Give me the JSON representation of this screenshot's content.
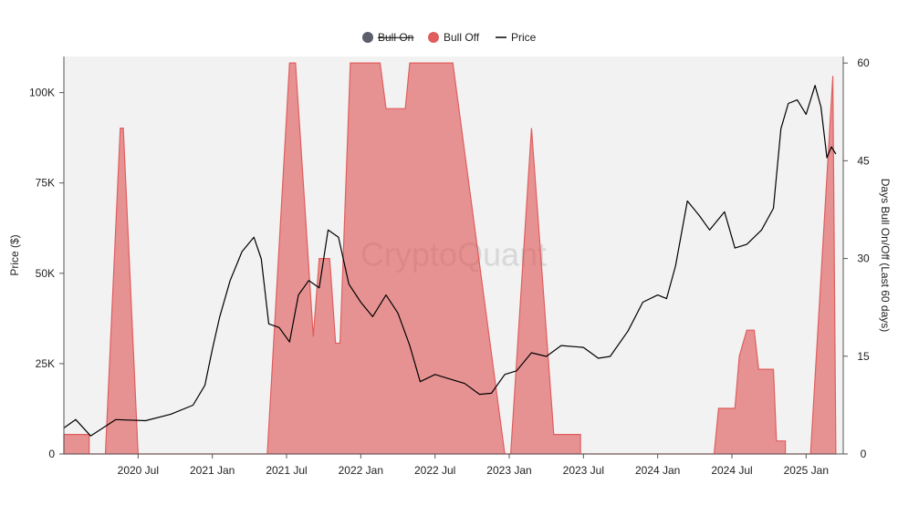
{
  "chart_data": {
    "type": "area",
    "title": "",
    "watermark": "CryptoQuant",
    "legend": {
      "placement": "top-center",
      "items": [
        {
          "label": "Bull On",
          "marker": "dot",
          "color": "#5b5f6b",
          "hidden": true
        },
        {
          "label": "Bull Off",
          "marker": "dot",
          "color": "#e05d5d",
          "hidden": false
        },
        {
          "label": "Price",
          "marker": "line",
          "color": "#000000",
          "hidden": false
        }
      ]
    },
    "x_axis": {
      "start": 2020.0,
      "end": 2025.25,
      "ticks": [
        {
          "label": "2020 Jul",
          "t": 2020.5
        },
        {
          "label": "2021 Jan",
          "t": 2021.0
        },
        {
          "label": "2021 Jul",
          "t": 2021.5
        },
        {
          "label": "2022 Jan",
          "t": 2022.0
        },
        {
          "label": "2022 Jul",
          "t": 2022.5
        },
        {
          "label": "2023 Jan",
          "t": 2023.0
        },
        {
          "label": "2023 Jul",
          "t": 2023.5
        },
        {
          "label": "2024 Jan",
          "t": 2024.0
        },
        {
          "label": "2024 Jul",
          "t": 2024.5
        },
        {
          "label": "2025 Jan",
          "t": 2025.0
        }
      ]
    },
    "y_left": {
      "label": "Price ($)",
      "min": 0,
      "max": 110000,
      "ticks": [
        {
          "label": "0",
          "v": 0
        },
        {
          "label": "25K",
          "v": 25000
        },
        {
          "label": "50K",
          "v": 50000
        },
        {
          "label": "75K",
          "v": 75000
        },
        {
          "label": "100K",
          "v": 100000
        }
      ]
    },
    "y_right": {
      "label": "Days Bull On/Off (Last 60 days)",
      "min": 0,
      "max": 61,
      "ticks": [
        {
          "label": "0",
          "v": 0
        },
        {
          "label": "15",
          "v": 15
        },
        {
          "label": "30",
          "v": 30
        },
        {
          "label": "45",
          "v": 45
        },
        {
          "label": "60",
          "v": 60
        }
      ]
    },
    "series": [
      {
        "name": "Bull Off",
        "axis": "right",
        "color": "#e05d5d",
        "points": [
          [
            2020.0,
            3
          ],
          [
            2020.17,
            3
          ],
          [
            2020.17,
            0
          ],
          [
            2020.28,
            0
          ],
          [
            2020.38,
            50
          ],
          [
            2020.4,
            50
          ],
          [
            2020.5,
            0
          ],
          [
            2021.37,
            0
          ],
          [
            2021.52,
            60
          ],
          [
            2021.56,
            60
          ],
          [
            2021.68,
            18
          ],
          [
            2021.72,
            30
          ],
          [
            2021.79,
            30
          ],
          [
            2021.8,
            27
          ],
          [
            2021.83,
            17
          ],
          [
            2021.86,
            17
          ],
          [
            2021.93,
            60
          ],
          [
            2022.13,
            60
          ],
          [
            2022.17,
            53
          ],
          [
            2022.3,
            53
          ],
          [
            2022.33,
            60
          ],
          [
            2022.62,
            60
          ],
          [
            2022.97,
            0
          ],
          [
            2023.01,
            0
          ],
          [
            2023.15,
            50
          ],
          [
            2023.3,
            3
          ],
          [
            2023.48,
            3
          ],
          [
            2023.48,
            0
          ],
          [
            2024.38,
            0
          ],
          [
            2024.41,
            7
          ],
          [
            2024.52,
            7
          ],
          [
            2024.55,
            15
          ],
          [
            2024.6,
            19
          ],
          [
            2024.65,
            19
          ],
          [
            2024.68,
            13
          ],
          [
            2024.78,
            13
          ],
          [
            2024.8,
            2
          ],
          [
            2024.86,
            2
          ],
          [
            2024.86,
            0
          ],
          [
            2025.03,
            0
          ],
          [
            2025.18,
            58
          ],
          [
            2025.2,
            0
          ]
        ]
      },
      {
        "name": "Price",
        "axis": "left",
        "color": "#000000",
        "points": [
          [
            2020.0,
            7200
          ],
          [
            2020.08,
            9500
          ],
          [
            2020.18,
            5000
          ],
          [
            2020.35,
            9500
          ],
          [
            2020.55,
            9200
          ],
          [
            2020.72,
            11000
          ],
          [
            2020.87,
            13500
          ],
          [
            2020.95,
            19000
          ],
          [
            2021.0,
            29000
          ],
          [
            2021.05,
            38000
          ],
          [
            2021.12,
            48000
          ],
          [
            2021.2,
            56000
          ],
          [
            2021.28,
            60000
          ],
          [
            2021.33,
            54000
          ],
          [
            2021.38,
            36000
          ],
          [
            2021.45,
            35000
          ],
          [
            2021.52,
            31000
          ],
          [
            2021.58,
            44000
          ],
          [
            2021.65,
            48000
          ],
          [
            2021.72,
            46000
          ],
          [
            2021.78,
            62000
          ],
          [
            2021.85,
            60000
          ],
          [
            2021.92,
            47000
          ],
          [
            2022.0,
            42000
          ],
          [
            2022.08,
            38000
          ],
          [
            2022.17,
            44000
          ],
          [
            2022.25,
            39000
          ],
          [
            2022.33,
            30000
          ],
          [
            2022.4,
            20000
          ],
          [
            2022.5,
            22000
          ],
          [
            2022.58,
            21000
          ],
          [
            2022.7,
            19500
          ],
          [
            2022.8,
            16500
          ],
          [
            2022.88,
            16800
          ],
          [
            2022.97,
            22000
          ],
          [
            2023.05,
            23000
          ],
          [
            2023.15,
            28000
          ],
          [
            2023.25,
            27000
          ],
          [
            2023.35,
            30000
          ],
          [
            2023.5,
            29500
          ],
          [
            2023.6,
            26500
          ],
          [
            2023.68,
            27000
          ],
          [
            2023.8,
            34000
          ],
          [
            2023.9,
            42000
          ],
          [
            2024.0,
            44000
          ],
          [
            2024.06,
            43000
          ],
          [
            2024.12,
            52000
          ],
          [
            2024.2,
            70000
          ],
          [
            2024.28,
            66000
          ],
          [
            2024.35,
            62000
          ],
          [
            2024.45,
            67000
          ],
          [
            2024.52,
            57000
          ],
          [
            2024.6,
            58000
          ],
          [
            2024.7,
            62000
          ],
          [
            2024.78,
            68000
          ],
          [
            2024.83,
            90000
          ],
          [
            2024.88,
            97000
          ],
          [
            2024.94,
            98000
          ],
          [
            2025.0,
            94000
          ],
          [
            2025.06,
            102000
          ],
          [
            2025.1,
            96000
          ],
          [
            2025.14,
            82000
          ],
          [
            2025.17,
            85000
          ],
          [
            2025.2,
            83000
          ]
        ]
      }
    ],
    "grid": false
  }
}
